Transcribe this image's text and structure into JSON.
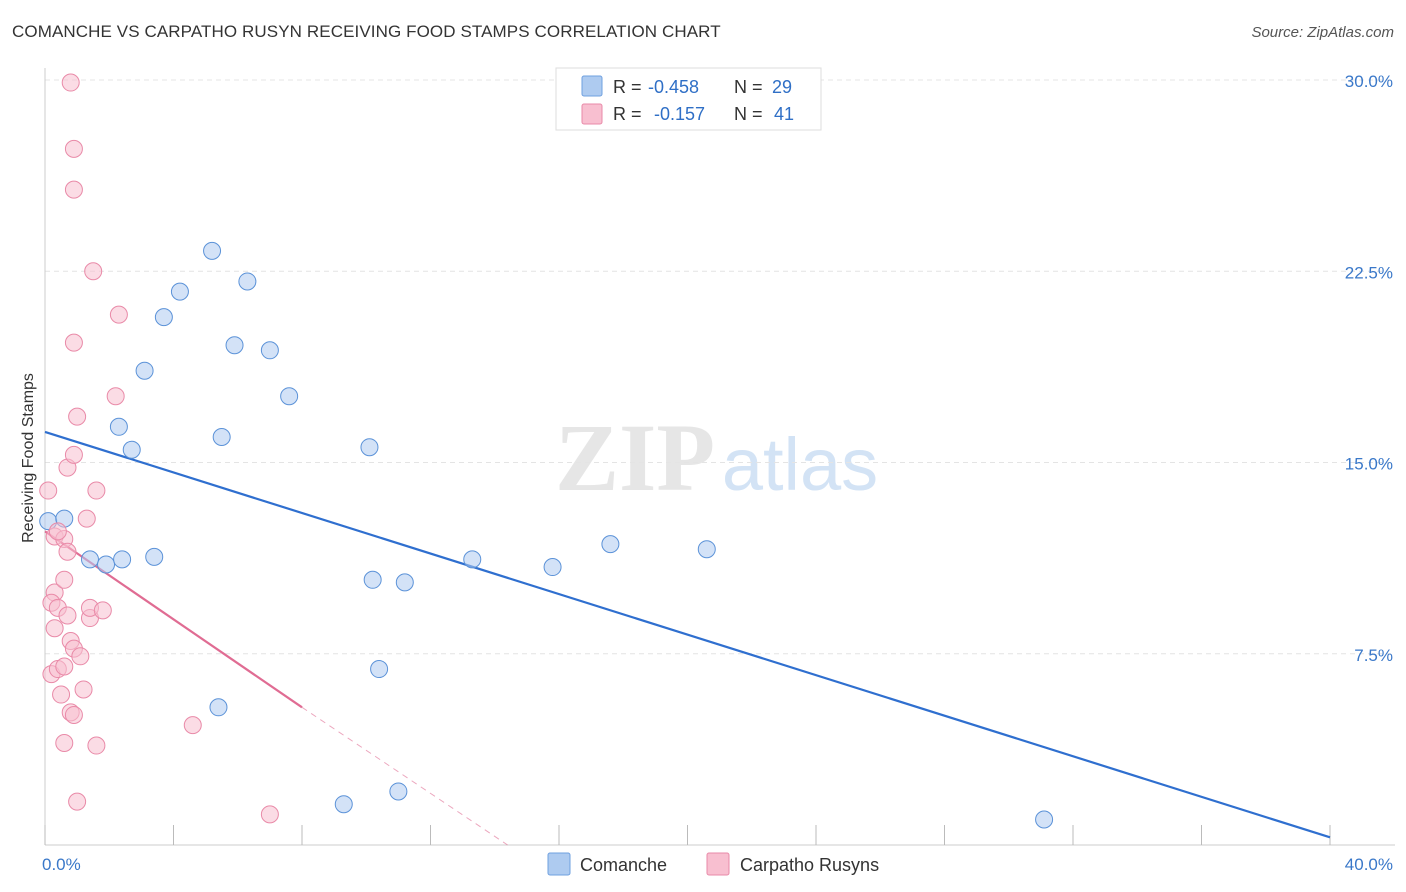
{
  "header": {
    "title": "COMANCHE VS CARPATHO RUSYN RECEIVING FOOD STAMPS CORRELATION CHART",
    "source": "Source: ZipAtlas.com"
  },
  "watermark": {
    "zip": "ZIP",
    "atlas": "atlas"
  },
  "legend": {
    "r_label": "R =",
    "n_label": "N =",
    "items": [
      {
        "name": "Comanche",
        "r": "-0.458",
        "n": "29",
        "fill": "#aecbf0",
        "stroke": "#6fa0df"
      },
      {
        "name": "Carpatho Rusyns",
        "r": "-0.157",
        "n": "41",
        "fill": "#f8bfd0",
        "stroke": "#e98aa8"
      }
    ]
  },
  "colors": {
    "blue_point": "#aecbf0",
    "blue_stroke": "#5b92d8",
    "blue_line": "#2f6fcf",
    "pink_point": "#f8bfd0",
    "pink_stroke": "#e98aa8",
    "pink_line": "#e06c93",
    "grid": "#e4e4e4",
    "axis_text": "#3a78c9"
  },
  "chart_data": {
    "type": "scatter",
    "title": "COMANCHE VS CARPATHO RUSYN RECEIVING FOOD STAMPS CORRELATION CHART",
    "xlabel": "",
    "ylabel": "Receiving Food Stamps",
    "xlim": [
      0,
      40
    ],
    "ylim": [
      0,
      30
    ],
    "x_tick_labels": [
      "0.0%",
      "40.0%"
    ],
    "y_ticks": [
      7.5,
      15.0,
      22.5,
      30.0
    ],
    "y_tick_labels": [
      "7.5%",
      "15.0%",
      "22.5%",
      "30.0%"
    ],
    "grid": true,
    "legend_position": "top-center",
    "series": [
      {
        "name": "Comanche",
        "color": "#aecbf0",
        "points": [
          [
            0.1,
            12.7
          ],
          [
            0.6,
            12.8
          ],
          [
            1.4,
            11.2
          ],
          [
            1.9,
            11.0
          ],
          [
            2.3,
            16.4
          ],
          [
            2.4,
            11.2
          ],
          [
            2.7,
            15.5
          ],
          [
            3.1,
            18.6
          ],
          [
            3.4,
            11.3
          ],
          [
            3.7,
            20.7
          ],
          [
            4.2,
            21.7
          ],
          [
            5.2,
            23.3
          ],
          [
            5.5,
            16.0
          ],
          [
            5.4,
            5.4
          ],
          [
            5.9,
            19.6
          ],
          [
            6.3,
            22.1
          ],
          [
            7.0,
            19.4
          ],
          [
            7.6,
            17.6
          ],
          [
            10.1,
            15.6
          ],
          [
            9.3,
            1.6
          ],
          [
            10.2,
            10.4
          ],
          [
            10.4,
            6.9
          ],
          [
            11.0,
            2.1
          ],
          [
            11.2,
            10.3
          ],
          [
            13.3,
            11.2
          ],
          [
            15.8,
            10.9
          ],
          [
            17.6,
            11.8
          ],
          [
            20.6,
            11.6
          ],
          [
            31.1,
            1.0
          ]
        ],
        "trend": {
          "x": [
            0,
            40
          ],
          "y": [
            16.2,
            0.3
          ]
        }
      },
      {
        "name": "Carpatho Rusyns",
        "color": "#f8bfd0",
        "points": [
          [
            0.1,
            13.9
          ],
          [
            0.3,
            9.9
          ],
          [
            0.2,
            9.5
          ],
          [
            0.4,
            9.3
          ],
          [
            0.3,
            12.1
          ],
          [
            0.6,
            12.0
          ],
          [
            0.3,
            8.5
          ],
          [
            0.2,
            6.7
          ],
          [
            0.4,
            6.9
          ],
          [
            0.6,
            10.4
          ],
          [
            0.7,
            9.0
          ],
          [
            0.7,
            14.8
          ],
          [
            0.8,
            8.0
          ],
          [
            0.6,
            7.0
          ],
          [
            0.9,
            7.7
          ],
          [
            0.5,
            5.9
          ],
          [
            0.8,
            5.2
          ],
          [
            0.9,
            5.1
          ],
          [
            0.6,
            4.0
          ],
          [
            0.9,
            19.7
          ],
          [
            0.9,
            27.3
          ],
          [
            0.8,
            29.9
          ],
          [
            0.9,
            15.3
          ],
          [
            1.0,
            16.8
          ],
          [
            0.9,
            25.7
          ],
          [
            1.1,
            7.4
          ],
          [
            1.3,
            12.8
          ],
          [
            1.2,
            6.1
          ],
          [
            1.4,
            8.9
          ],
          [
            1.4,
            9.3
          ],
          [
            1.5,
            22.5
          ],
          [
            1.6,
            13.9
          ],
          [
            1.6,
            3.9
          ],
          [
            1.8,
            9.2
          ],
          [
            1.0,
            1.7
          ],
          [
            2.2,
            17.6
          ],
          [
            2.3,
            20.8
          ],
          [
            4.6,
            4.7
          ],
          [
            7.0,
            1.2
          ],
          [
            0.4,
            12.3
          ],
          [
            0.7,
            11.5
          ]
        ],
        "trend": {
          "x": [
            0,
            8.0
          ],
          "y": [
            12.3,
            5.4
          ]
        },
        "trend_extension": {
          "x": [
            8.0,
            14.4
          ],
          "y": [
            5.4,
            0.0
          ]
        }
      }
    ]
  }
}
